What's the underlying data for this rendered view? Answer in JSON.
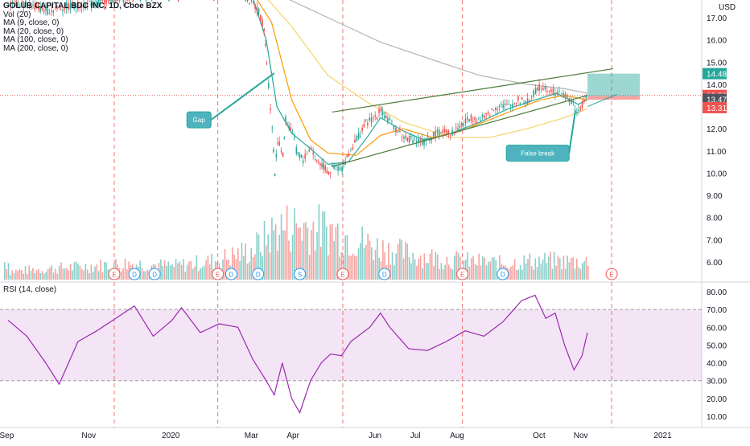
{
  "chart_data": {
    "type": "candlestick",
    "title": "GOLUB CAPITAL BDC INC, 1D, Cboe BZX",
    "currency": "USD",
    "indicators": [
      "Vol (20)",
      "MA (9, close, 0)",
      "MA (20, close, 0)",
      "MA (100, close, 0)",
      "MA (200, close, 0)"
    ],
    "price_axis": {
      "range": [
        5.2,
        17.9
      ],
      "ticks": [
        "17.00",
        "16.00",
        "15.00",
        "14.00",
        "12.00",
        "11.00",
        "10.00",
        "9.00",
        "8.00",
        "7.00",
        "6.00"
      ]
    },
    "price_badges": [
      {
        "label": "14.48",
        "value": 14.48,
        "color": "#26a69a"
      },
      {
        "label": "13.50",
        "value": 13.5,
        "color": "#ef5350"
      },
      {
        "label": "13.47",
        "value": 13.47,
        "color": "#50535e"
      },
      {
        "label": "13.31",
        "value": 13.31,
        "color": "#ef5350"
      }
    ],
    "price_series": [
      [
        "2019-09-02",
        17.7
      ],
      [
        "2019-09-16",
        17.6
      ],
      [
        "2019-10-01",
        17.3
      ],
      [
        "2019-10-15",
        17.5
      ],
      [
        "2019-11-01",
        17.6
      ],
      [
        "2019-11-15",
        17.8
      ],
      [
        "2019-12-02",
        17.9
      ],
      [
        "2019-12-16",
        18.1
      ],
      [
        "2020-01-02",
        18.0
      ],
      [
        "2020-01-16",
        18.2
      ],
      [
        "2020-02-03",
        18.1
      ],
      [
        "2020-02-18",
        18.3
      ],
      [
        "2020-03-02",
        17.6
      ],
      [
        "2020-03-06",
        17.3
      ],
      [
        "2020-03-10",
        16.5
      ],
      [
        "2020-03-12",
        15.0
      ],
      [
        "2020-03-16",
        12.0
      ],
      [
        "2020-03-18",
        10.0
      ],
      [
        "2020-03-20",
        11.5
      ],
      [
        "2020-03-24",
        10.8
      ],
      [
        "2020-03-26",
        12.4
      ],
      [
        "2020-03-31",
        11.9
      ],
      [
        "2020-04-03",
        11.0
      ],
      [
        "2020-04-08",
        10.6
      ],
      [
        "2020-04-14",
        11.2
      ],
      [
        "2020-04-17",
        10.6
      ],
      [
        "2020-04-22",
        10.4
      ],
      [
        "2020-04-27",
        10.0
      ],
      [
        "2020-05-01",
        10.3
      ],
      [
        "2020-05-07",
        10.2
      ],
      [
        "2020-05-12",
        10.9
      ],
      [
        "2020-05-18",
        11.6
      ],
      [
        "2020-05-26",
        12.3
      ],
      [
        "2020-06-02",
        12.6
      ],
      [
        "2020-06-05",
        12.9
      ],
      [
        "2020-06-10",
        12.4
      ],
      [
        "2020-06-16",
        12.0
      ],
      [
        "2020-06-22",
        11.6
      ],
      [
        "2020-06-30",
        11.5
      ],
      [
        "2020-07-07",
        11.4
      ],
      [
        "2020-07-14",
        11.7
      ],
      [
        "2020-07-21",
        11.9
      ],
      [
        "2020-07-28",
        11.8
      ],
      [
        "2020-08-04",
        12.2
      ],
      [
        "2020-08-11",
        12.5
      ],
      [
        "2020-08-18",
        12.4
      ],
      [
        "2020-08-25",
        12.7
      ],
      [
        "2020-09-01",
        13.1
      ],
      [
        "2020-09-08",
        13.0
      ],
      [
        "2020-09-15",
        13.3
      ],
      [
        "2020-09-22",
        13.2
      ],
      [
        "2020-09-28",
        13.7
      ],
      [
        "2020-10-02",
        13.9
      ],
      [
        "2020-10-08",
        13.8
      ],
      [
        "2020-10-14",
        13.6
      ],
      [
        "2020-10-20",
        13.5
      ],
      [
        "2020-10-26",
        13.1
      ],
      [
        "2020-10-30",
        12.7
      ],
      [
        "2020-11-03",
        13.2
      ],
      [
        "2020-11-06",
        13.5
      ]
    ],
    "moving_averages": [
      {
        "name": "MA (9, close, 0)",
        "color": "#26a69a",
        "points": [
          [
            "2020-03-02",
            17.9
          ],
          [
            "2020-03-12",
            16.0
          ],
          [
            "2020-03-20",
            13.0
          ],
          [
            "2020-03-31",
            11.8
          ],
          [
            "2020-04-14",
            11.1
          ],
          [
            "2020-04-27",
            10.4
          ],
          [
            "2020-05-12",
            10.5
          ],
          [
            "2020-05-26",
            11.6
          ],
          [
            "2020-06-05",
            12.5
          ],
          [
            "2020-06-22",
            11.9
          ],
          [
            "2020-07-07",
            11.5
          ],
          [
            "2020-07-28",
            11.8
          ],
          [
            "2020-08-18",
            12.3
          ],
          [
            "2020-09-08",
            12.9
          ],
          [
            "2020-09-28",
            13.3
          ],
          [
            "2020-10-14",
            13.6
          ],
          [
            "2020-10-30",
            13.1
          ],
          [
            "2020-11-06",
            13.3
          ]
        ]
      },
      {
        "name": "MA (20, close, 0)",
        "color": "#ff9800",
        "points": [
          [
            "2020-03-02",
            18.1
          ],
          [
            "2020-03-16",
            16.8
          ],
          [
            "2020-03-31",
            13.3
          ],
          [
            "2020-04-14",
            11.5
          ],
          [
            "2020-04-27",
            10.9
          ],
          [
            "2020-05-18",
            10.8
          ],
          [
            "2020-06-05",
            11.7
          ],
          [
            "2020-06-22",
            12.0
          ],
          [
            "2020-07-14",
            11.6
          ],
          [
            "2020-08-04",
            11.9
          ],
          [
            "2020-08-25",
            12.4
          ],
          [
            "2020-09-15",
            12.9
          ],
          [
            "2020-10-02",
            13.3
          ],
          [
            "2020-10-20",
            13.5
          ],
          [
            "2020-11-06",
            13.3
          ]
        ]
      },
      {
        "name": "MA (100, close, 0)",
        "color": "#f5d46a",
        "points": [
          [
            "2020-03-02",
            18.6
          ],
          [
            "2020-03-31",
            16.6
          ],
          [
            "2020-04-27",
            14.4
          ],
          [
            "2020-05-26",
            13.2
          ],
          [
            "2020-06-22",
            12.3
          ],
          [
            "2020-07-28",
            11.6
          ],
          [
            "2020-08-25",
            11.6
          ],
          [
            "2020-09-22",
            12.0
          ],
          [
            "2020-10-20",
            12.5
          ],
          [
            "2020-11-06",
            12.9
          ]
        ]
      },
      {
        "name": "MA (200, close, 0)",
        "color": "#b5b5b5",
        "points": [
          [
            "2020-03-12",
            18.3
          ],
          [
            "2020-04-27",
            17.0
          ],
          [
            "2020-06-05",
            15.9
          ],
          [
            "2020-07-14",
            15.1
          ],
          [
            "2020-08-18",
            14.4
          ],
          [
            "2020-09-22",
            14.0
          ],
          [
            "2020-10-20",
            13.8
          ],
          [
            "2020-11-06",
            13.6
          ]
        ]
      }
    ],
    "trendlines": [
      {
        "from": [
          "2020-04-30",
          12.75
        ],
        "to": [
          "2020-11-25",
          14.7
        ]
      },
      {
        "from": [
          "2020-04-30",
          10.3
        ],
        "to": [
          "2020-11-06",
          13.5
        ]
      }
    ],
    "annotations": [
      {
        "text": "Gap",
        "at": [
          "2020-01-22",
          12.4
        ],
        "pointer": [
          "2020-03-18",
          14.5
        ]
      },
      {
        "text": "False break",
        "at": [
          "2020-09-30",
          10.9
        ],
        "pointer": [
          "2020-10-28",
          12.8
        ]
      }
    ],
    "target_zone": {
      "from": "2020-11-06",
      "to": "2020-12-15",
      "top": 14.48,
      "mid": 13.47,
      "bottom": 13.31
    },
    "horizontal_level": 13.5,
    "x_axis": {
      "ticks": [
        {
          "label": "Sep",
          "date": "2019-09-01"
        },
        {
          "label": "Nov",
          "date": "2019-11-01"
        },
        {
          "label": "2020",
          "date": "2020-01-01"
        },
        {
          "label": "Mar",
          "date": "2020-03-01"
        },
        {
          "label": "Apr",
          "date": "2020-04-01"
        },
        {
          "label": "Jun",
          "date": "2020-06-01"
        },
        {
          "label": "Jul",
          "date": "2020-07-01"
        },
        {
          "label": "Aug",
          "date": "2020-08-01"
        },
        {
          "label": "Oct",
          "date": "2020-10-01"
        },
        {
          "label": "Nov",
          "date": "2020-11-01"
        },
        {
          "label": "2021",
          "date": "2021-01-01"
        }
      ],
      "range": [
        "2019-08-27",
        "2021-01-30"
      ]
    },
    "event_markers": [
      {
        "label": "E",
        "date": "2019-11-20"
      },
      {
        "label": "D",
        "date": "2019-12-05"
      },
      {
        "label": "D",
        "date": "2019-12-20"
      },
      {
        "label": "E",
        "date": "2020-02-05"
      },
      {
        "label": "D",
        "date": "2020-02-15"
      },
      {
        "label": "D",
        "date": "2020-03-06"
      },
      {
        "label": "S",
        "date": "2020-04-06"
      },
      {
        "label": "E",
        "date": "2020-05-08"
      },
      {
        "label": "D",
        "date": "2020-06-08"
      },
      {
        "label": "E",
        "date": "2020-08-05"
      },
      {
        "label": "D",
        "date": "2020-09-04"
      },
      {
        "label": "E",
        "date": "2020-11-24"
      }
    ],
    "earnings_lines": [
      "2019-11-20",
      "2020-02-05",
      "2020-05-08",
      "2020-08-05",
      "2020-11-24"
    ],
    "volume_profile": [
      [
        "2019-09-02",
        0.6
      ],
      [
        "2019-10-01",
        0.8
      ],
      [
        "2019-11-01",
        1.0
      ],
      [
        "2019-12-01",
        1.2
      ],
      [
        "2020-01-02",
        1.0
      ],
      [
        "2020-02-03",
        1.4
      ],
      [
        "2020-03-02",
        2.2
      ],
      [
        "2020-03-20",
        3.8
      ],
      [
        "2020-04-03",
        4.0
      ],
      [
        "2020-05-01",
        3.6
      ],
      [
        "2020-06-01",
        2.4
      ],
      [
        "2020-07-01",
        1.8
      ],
      [
        "2020-08-03",
        1.4
      ],
      [
        "2020-09-01",
        1.2
      ],
      [
        "2020-10-01",
        1.4
      ],
      [
        "2020-11-06",
        1.3
      ]
    ],
    "rsi": {
      "label": "RSI (14, close)",
      "axis_ticks": [
        "80.00",
        "70.00",
        "60.00",
        "50.00",
        "40.00",
        "30.00",
        "20.00",
        "10.00"
      ],
      "range": [
        4,
        84
      ],
      "upper": 70,
      "lower": 30,
      "series": [
        [
          "2019-09-02",
          64
        ],
        [
          "2019-09-16",
          55
        ],
        [
          "2019-09-30",
          40
        ],
        [
          "2019-10-10",
          28
        ],
        [
          "2019-10-24",
          52
        ],
        [
          "2019-11-07",
          58
        ],
        [
          "2019-11-21",
          65
        ],
        [
          "2019-12-05",
          72
        ],
        [
          "2019-12-19",
          55
        ],
        [
          "2020-01-02",
          64
        ],
        [
          "2020-01-09",
          71
        ],
        [
          "2020-01-23",
          57
        ],
        [
          "2020-02-06",
          62
        ],
        [
          "2020-02-20",
          60
        ],
        [
          "2020-03-02",
          42
        ],
        [
          "2020-03-12",
          30
        ],
        [
          "2020-03-18",
          22
        ],
        [
          "2020-03-24",
          40
        ],
        [
          "2020-03-31",
          20
        ],
        [
          "2020-04-06",
          12
        ],
        [
          "2020-04-14",
          30
        ],
        [
          "2020-04-22",
          40
        ],
        [
          "2020-04-29",
          45
        ],
        [
          "2020-05-07",
          44
        ],
        [
          "2020-05-14",
          52
        ],
        [
          "2020-05-28",
          60
        ],
        [
          "2020-06-05",
          68
        ],
        [
          "2020-06-12",
          60
        ],
        [
          "2020-06-26",
          48
        ],
        [
          "2020-07-10",
          47
        ],
        [
          "2020-07-24",
          52
        ],
        [
          "2020-08-07",
          58
        ],
        [
          "2020-08-21",
          55
        ],
        [
          "2020-09-04",
          63
        ],
        [
          "2020-09-18",
          75
        ],
        [
          "2020-09-28",
          78
        ],
        [
          "2020-10-06",
          65
        ],
        [
          "2020-10-13",
          68
        ],
        [
          "2020-10-20",
          50
        ],
        [
          "2020-10-27",
          36
        ],
        [
          "2020-11-02",
          44
        ],
        [
          "2020-11-06",
          57
        ]
      ]
    }
  }
}
